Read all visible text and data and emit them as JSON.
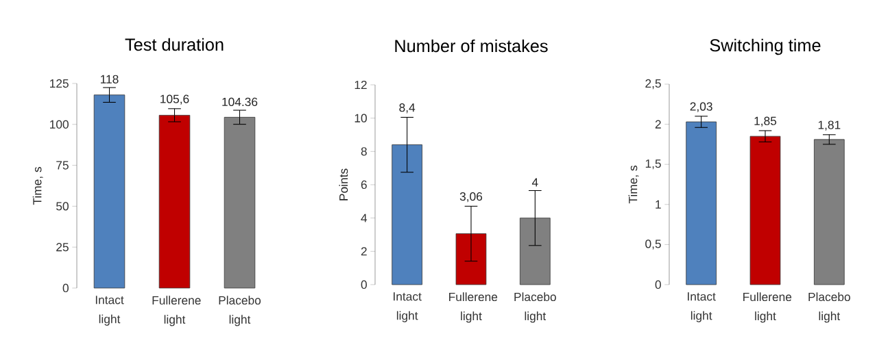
{
  "chart_data": [
    {
      "type": "bar",
      "title": "Test duration",
      "ylabel": "Time, s",
      "categories": [
        "Intact light",
        "Fullerene light",
        "Placebo light"
      ],
      "values": [
        118,
        105.6,
        104.36
      ],
      "colors": [
        "#4f81bd",
        "#c00000",
        "#808080"
      ],
      "errors": [
        4.5,
        4,
        4.3
      ],
      "value_labels": [
        "118",
        "105,6",
        "104.36"
      ],
      "ylim": [
        0,
        125
      ],
      "yticks": [
        0,
        25,
        50,
        75,
        100,
        125
      ]
    },
    {
      "type": "bar",
      "title": "Number of mistakes",
      "ylabel": "Points",
      "categories": [
        "Intact light",
        "Fullerene light",
        "Placebo light"
      ],
      "values": [
        8.4,
        3.06,
        4
      ],
      "colors": [
        "#4f81bd",
        "#c00000",
        "#808080"
      ],
      "errors": [
        1.65,
        1.65,
        1.65
      ],
      "value_labels": [
        "8,4",
        "3,06",
        "4"
      ],
      "ylim": [
        0,
        12
      ],
      "yticks": [
        0,
        2,
        4,
        6,
        8,
        10,
        12
      ]
    },
    {
      "type": "bar",
      "title": "Switching time",
      "ylabel": "Time, s",
      "categories": [
        "Intact light",
        "Fullerene light",
        "Placebo light"
      ],
      "values": [
        2.03,
        1.85,
        1.81
      ],
      "colors": [
        "#4f81bd",
        "#c00000",
        "#808080"
      ],
      "errors": [
        0.07,
        0.07,
        0.06
      ],
      "value_labels": [
        "2,03",
        "1,85",
        "1,81"
      ],
      "ylim": [
        0,
        2.5
      ],
      "yticks": [
        0,
        {
          "value": 0.5,
          "label": "0,5"
        },
        1,
        {
          "value": 1.5,
          "label": "1,5"
        },
        2,
        {
          "value": 2.5,
          "label": "2,5"
        }
      ]
    }
  ]
}
